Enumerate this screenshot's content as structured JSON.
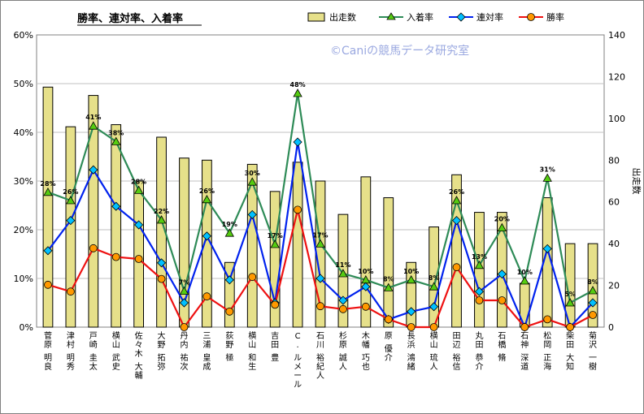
{
  "chart_data": {
    "type": "bar",
    "title": "勝率、連対率、入着率",
    "watermark": "©Caniの競馬データ研究室",
    "y2label": "出走数",
    "ylim": [
      0,
      0.6
    ],
    "y_ticks": [
      "0%",
      "10%",
      "20%",
      "30%",
      "40%",
      "50%",
      "60%"
    ],
    "y2lim": [
      0,
      140
    ],
    "y2_ticks": [
      "0",
      "20",
      "40",
      "60",
      "80",
      "100",
      "120",
      "140"
    ],
    "grid": true,
    "legend_position": "top",
    "colors": {
      "bar_fill": "#e6e08a",
      "bar_edge": "#000000",
      "place": "#2e8b57",
      "place_marker": "#55cc11",
      "rentai": "#0022ee",
      "rentai_marker": "#00c0ff",
      "win": "#ee1111",
      "win_marker": "#ff9900",
      "plot_bg": "#ffffff",
      "grid": "#c0c0c0"
    },
    "categories": [
      "菅原 明良",
      "津村 明秀",
      "戸崎 圭太",
      "横山 武史",
      "佐々木 大輔",
      "大野 拓弥",
      "丹内 祐次",
      "三浦 皇成",
      "荻野 極",
      "横山 和生",
      "吉田 豊",
      "C. ルメール",
      "石川 裕紀人",
      "杉原 誠人",
      "木幡 巧也",
      "原 優介",
      "長浜 鴻緒",
      "横山 琉人",
      "田辺 裕信",
      "丸田 恭介",
      "石橋 脩",
      "石神 深道",
      "松岡 正海",
      "柴田 大知",
      "菊沢 一樹"
    ],
    "series": [
      {
        "name": "出走数",
        "axis": "y2",
        "kind": "bar",
        "values": [
          115,
          96,
          111,
          97,
          70,
          91,
          81,
          80,
          31,
          78,
          65,
          79,
          70,
          54,
          72,
          62,
          31,
          48,
          73,
          55,
          55,
          21,
          62,
          40,
          40
        ]
      },
      {
        "name": "入着率",
        "axis": "y",
        "kind": "line",
        "values": [
          0.277,
          0.26,
          0.413,
          0.381,
          0.281,
          0.22,
          0.074,
          0.262,
          0.193,
          0.298,
          0.17,
          0.48,
          0.171,
          0.11,
          0.097,
          0.081,
          0.097,
          0.083,
          0.26,
          0.127,
          0.204,
          0.095,
          0.306,
          0.05,
          0.075
        ]
      },
      {
        "name": "連対率",
        "axis": "y",
        "kind": "line",
        "values": [
          0.157,
          0.219,
          0.323,
          0.248,
          0.21,
          0.132,
          0.05,
          0.187,
          0.097,
          0.231,
          0.05,
          0.38,
          0.1,
          0.055,
          0.083,
          0.016,
          0.032,
          0.042,
          0.219,
          0.073,
          0.109,
          0.0,
          0.161,
          0.0,
          0.05
        ]
      },
      {
        "name": "勝率",
        "axis": "y",
        "kind": "line",
        "values": [
          0.087,
          0.073,
          0.162,
          0.144,
          0.14,
          0.099,
          0.0,
          0.063,
          0.032,
          0.103,
          0.046,
          0.241,
          0.043,
          0.037,
          0.042,
          0.016,
          0.0,
          0.0,
          0.123,
          0.055,
          0.055,
          0.0,
          0.016,
          0.0,
          0.025
        ]
      }
    ],
    "data_labels": {
      "series": "入着率",
      "values": [
        "28%",
        "26%",
        "41%",
        "38%",
        "28%",
        "22%",
        "7%",
        "26%",
        "19%",
        "30%",
        "17%",
        "48%",
        "17%",
        "11%",
        "10%",
        "8%",
        "10%",
        "8%",
        "26%",
        "13%",
        "20%",
        "10%",
        "31%",
        "5%",
        "8%"
      ]
    }
  }
}
